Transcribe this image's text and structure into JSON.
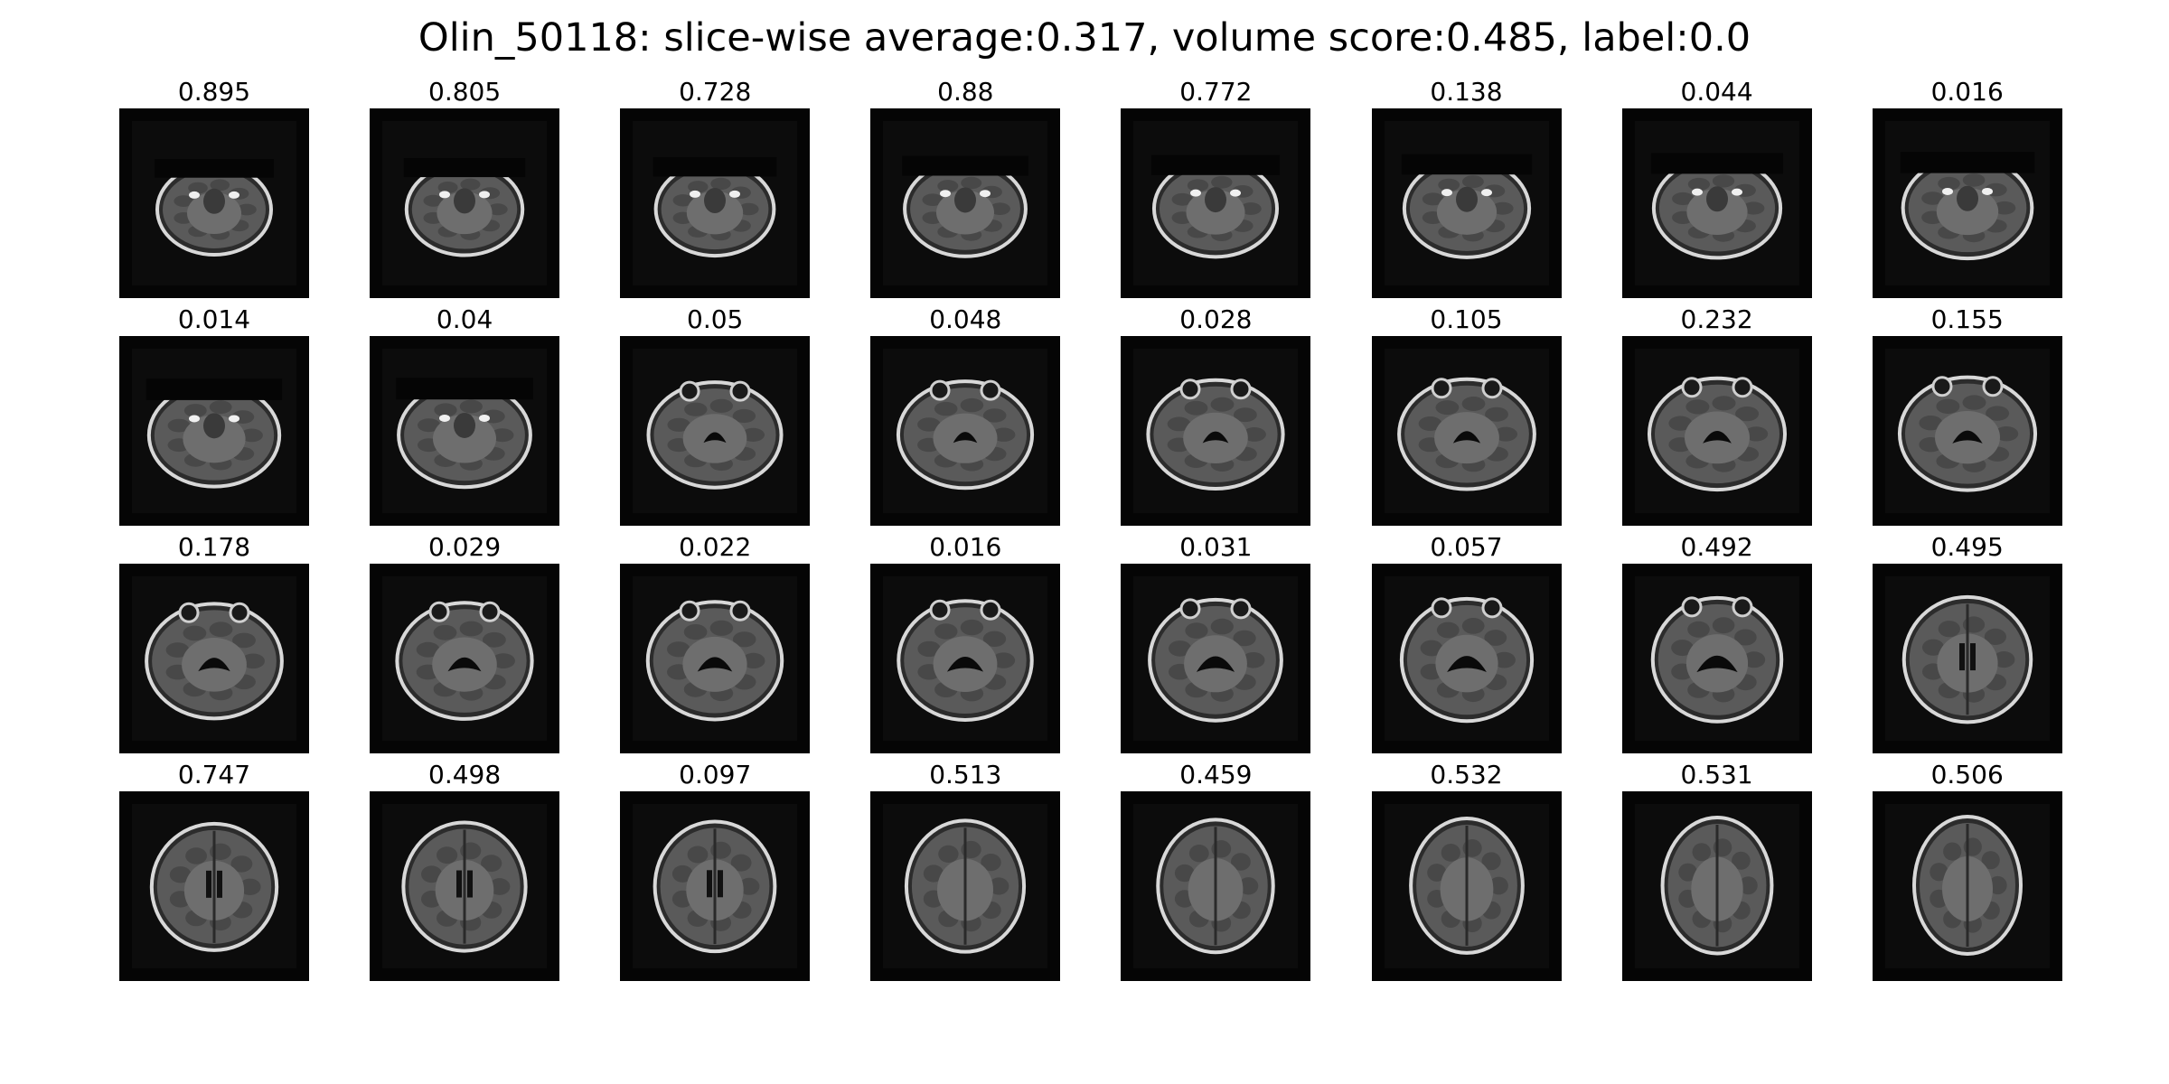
{
  "figure": {
    "title": "Olin_50118: slice-wise average:0.317, volume score:0.485, label:0.0"
  },
  "slices": [
    {
      "score": "0.895",
      "level": 0.0
    },
    {
      "score": "0.805",
      "level": 0.03
    },
    {
      "score": "0.728",
      "level": 0.06
    },
    {
      "score": "0.88",
      "level": 0.1
    },
    {
      "score": "0.772",
      "level": 0.13
    },
    {
      "score": "0.138",
      "level": 0.16
    },
    {
      "score": "0.044",
      "level": 0.19
    },
    {
      "score": "0.016",
      "level": 0.23
    },
    {
      "score": "0.014",
      "level": 0.26
    },
    {
      "score": "0.04",
      "level": 0.29
    },
    {
      "score": "0.05",
      "level": 0.32
    },
    {
      "score": "0.048",
      "level": 0.35
    },
    {
      "score": "0.028",
      "level": 0.39
    },
    {
      "score": "0.105",
      "level": 0.42
    },
    {
      "score": "0.232",
      "level": 0.45
    },
    {
      "score": "0.155",
      "level": 0.48
    },
    {
      "score": "0.178",
      "level": 0.52
    },
    {
      "score": "0.029",
      "level": 0.55
    },
    {
      "score": "0.022",
      "level": 0.58
    },
    {
      "score": "0.016",
      "level": 0.61
    },
    {
      "score": "0.031",
      "level": 0.65
    },
    {
      "score": "0.057",
      "level": 0.68
    },
    {
      "score": "0.492",
      "level": 0.71
    },
    {
      "score": "0.495",
      "level": 0.74
    },
    {
      "score": "0.747",
      "level": 0.77
    },
    {
      "score": "0.498",
      "level": 0.81
    },
    {
      "score": "0.097",
      "level": 0.84
    },
    {
      "score": "0.513",
      "level": 0.87
    },
    {
      "score": "0.459",
      "level": 0.9
    },
    {
      "score": "0.532",
      "level": 0.94
    },
    {
      "score": "0.531",
      "level": 0.97
    },
    {
      "score": "0.506",
      "level": 1.0
    }
  ]
}
